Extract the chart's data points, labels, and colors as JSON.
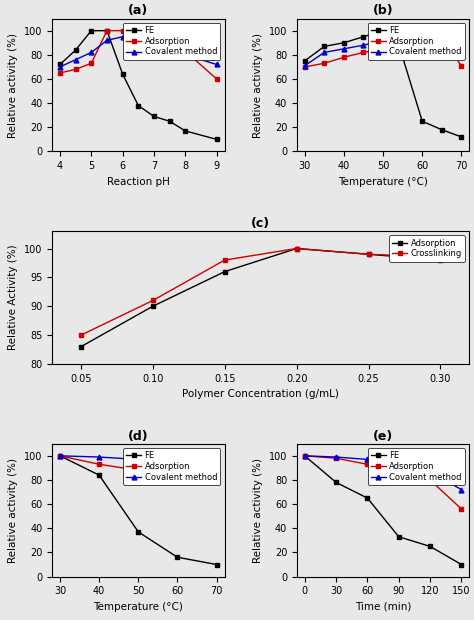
{
  "a": {
    "title": "(a)",
    "xlabel": "Reaction pH",
    "ylabel": "Relative activity (%)",
    "ylim": [
      0,
      110
    ],
    "yticks": [
      0,
      20,
      40,
      60,
      80,
      100
    ],
    "xticks": [
      4,
      5,
      6,
      7,
      8,
      9
    ],
    "series": {
      "FE": {
        "x": [
          4,
          4.5,
          5,
          5.5,
          6,
          6.5,
          7,
          7.5,
          8,
          9
        ],
        "y": [
          72,
          84,
          100,
          100,
          64,
          38,
          29,
          25,
          17,
          10
        ],
        "color": "#000000",
        "marker": "s"
      },
      "Adsorption": {
        "x": [
          4,
          4.5,
          5,
          5.5,
          6,
          6.5,
          7,
          7.5,
          8,
          9
        ],
        "y": [
          65,
          68,
          73,
          100,
          100,
          90,
          88,
          85,
          83,
          60
        ],
        "color": "#cc0000",
        "marker": "s"
      },
      "Covalent method": {
        "x": [
          4,
          4.5,
          5,
          5.5,
          6,
          6.5,
          7,
          7.5,
          8,
          9
        ],
        "y": [
          70,
          76,
          82,
          92,
          95,
          100,
          90,
          85,
          80,
          72
        ],
        "color": "#0000cc",
        "marker": "^"
      }
    }
  },
  "b": {
    "title": "(b)",
    "xlabel": "Temperature (°C)",
    "ylabel": "Relative activity (%)",
    "ylim": [
      0,
      110
    ],
    "yticks": [
      0,
      20,
      40,
      60,
      80,
      100
    ],
    "xticks": [
      30,
      40,
      50,
      60,
      70
    ],
    "series": {
      "FE": {
        "x": [
          30,
          35,
          40,
          45,
          50,
          55,
          60,
          65,
          70
        ],
        "y": [
          75,
          87,
          90,
          95,
          100,
          78,
          25,
          18,
          12
        ],
        "color": "#000000",
        "marker": "s"
      },
      "Adsorption": {
        "x": [
          30,
          35,
          40,
          45,
          50,
          55,
          60,
          65,
          70
        ],
        "y": [
          70,
          73,
          78,
          82,
          85,
          93,
          95,
          93,
          71
        ],
        "color": "#cc0000",
        "marker": "s"
      },
      "Covalent method": {
        "x": [
          30,
          35,
          40,
          45,
          50,
          55,
          60,
          65,
          70
        ],
        "y": [
          71,
          82,
          85,
          88,
          92,
          96,
          100,
          97,
          87
        ],
        "color": "#0000cc",
        "marker": "^"
      }
    }
  },
  "c": {
    "title": "(c)",
    "xlabel": "Polymer Concentration (g/mL)",
    "ylabel": "Relative Activity (%)",
    "ylim": [
      80,
      103
    ],
    "yticks": [
      80,
      85,
      90,
      95,
      100
    ],
    "xticks": [
      0.05,
      0.1,
      0.15,
      0.2,
      0.25,
      0.3
    ],
    "xlim": [
      0.03,
      0.32
    ],
    "series": {
      "Adsorption": {
        "x": [
          0.05,
          0.1,
          0.15,
          0.2,
          0.25,
          0.3
        ],
        "y": [
          83,
          90,
          96,
          100,
          99,
          98
        ],
        "color": "#000000",
        "marker": "s"
      },
      "Crosslinking": {
        "x": [
          0.05,
          0.1,
          0.15,
          0.2,
          0.25,
          0.3
        ],
        "y": [
          85,
          91,
          98,
          100,
          99,
          98.5
        ],
        "color": "#cc0000",
        "marker": "s"
      }
    }
  },
  "d": {
    "title": "(d)",
    "xlabel": "Temperature (°C)",
    "ylabel": "Relative activity (%)",
    "ylim": [
      0,
      110
    ],
    "yticks": [
      0,
      20,
      40,
      60,
      80,
      100
    ],
    "xticks": [
      30,
      40,
      50,
      60,
      70
    ],
    "series": {
      "FE": {
        "x": [
          30,
          40,
          50,
          60,
          70
        ],
        "y": [
          100,
          84,
          37,
          16,
          10
        ],
        "color": "#000000",
        "marker": "s"
      },
      "Adsorption": {
        "x": [
          30,
          40,
          50,
          60,
          70
        ],
        "y": [
          100,
          93,
          88,
          84,
          83
        ],
        "color": "#cc0000",
        "marker": "s"
      },
      "Covalent method": {
        "x": [
          30,
          40,
          50,
          60,
          70
        ],
        "y": [
          100,
          99,
          97,
          93,
          88
        ],
        "color": "#0000cc",
        "marker": "^"
      }
    }
  },
  "e": {
    "title": "(e)",
    "xlabel": "Time (min)",
    "ylabel": "Relative activity (%)",
    "ylim": [
      0,
      110
    ],
    "yticks": [
      0,
      20,
      40,
      60,
      80,
      100
    ],
    "xticks": [
      0,
      30,
      60,
      90,
      120,
      150
    ],
    "series": {
      "FE": {
        "x": [
          0,
          30,
          60,
          90,
          120,
          150
        ],
        "y": [
          100,
          78,
          65,
          33,
          25,
          10
        ],
        "color": "#000000",
        "marker": "s"
      },
      "Adsorption": {
        "x": [
          0,
          30,
          60,
          90,
          120,
          150
        ],
        "y": [
          100,
          98,
          93,
          86,
          80,
          56
        ],
        "color": "#cc0000",
        "marker": "s"
      },
      "Covalent method": {
        "x": [
          0,
          30,
          60,
          90,
          120,
          150
        ],
        "y": [
          100,
          99,
          97,
          95,
          87,
          72
        ],
        "color": "#0000cc",
        "marker": "^"
      }
    }
  },
  "fig_bg": "#e8e8e8",
  "axes_bg": "#e8e8e8",
  "legend_fontsize": 6.0,
  "tick_labelsize": 7.0,
  "axis_labelsize": 7.5,
  "title_fontsize": 9.0,
  "linewidth": 1.0,
  "markersize": 3.5
}
